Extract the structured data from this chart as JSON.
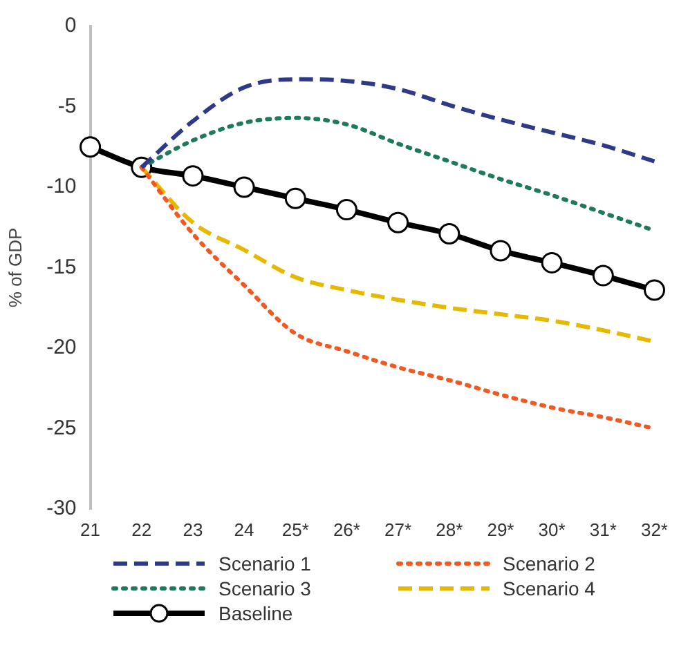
{
  "chart_data": {
    "type": "line",
    "ylabel": "% of GDP",
    "categories": [
      "21",
      "22",
      "23",
      "24",
      "25*",
      "26*",
      "27*",
      "28*",
      "29*",
      "30*",
      "31*",
      "32*"
    ],
    "series": [
      {
        "name": "Scenario 1",
        "color": "#2e3a87",
        "line_style": "dashed",
        "marker": "none",
        "values": [
          null,
          -8.77,
          -5.9,
          -3.8,
          -3.3,
          -3.4,
          -3.9,
          -4.9,
          -5.8,
          -6.6,
          -7.4,
          -8.4
        ]
      },
      {
        "name": "Scenario 2",
        "color": "#f05a22",
        "line_style": "dotted",
        "marker": "none",
        "values": [
          null,
          -8.77,
          -12.9,
          -16.1,
          -19.1,
          -20.2,
          -21.2,
          -22.0,
          -22.9,
          -23.7,
          -24.3,
          -25.0
        ]
      },
      {
        "name": "Scenario 3",
        "color": "#1f7a5a",
        "line_style": "dotted",
        "marker": "none",
        "values": [
          null,
          -8.77,
          -7.1,
          -6.0,
          -5.7,
          -6.1,
          -7.3,
          -8.4,
          -9.5,
          -10.5,
          -11.6,
          -12.7
        ]
      },
      {
        "name": "Scenario 4",
        "color": "#e6b800",
        "line_style": "dashed",
        "marker": "none",
        "values": [
          null,
          -8.77,
          -12.2,
          -13.9,
          -15.6,
          -16.4,
          -17.0,
          -17.5,
          -17.9,
          -18.3,
          -18.9,
          -19.6
        ]
      },
      {
        "name": "Baseline",
        "color": "#000000",
        "line_style": "solid",
        "marker": "circle",
        "values": [
          -7.5,
          -8.77,
          -9.3,
          -10.0,
          -10.7,
          -11.4,
          -12.2,
          -12.9,
          -13.95,
          -14.7,
          -15.5,
          -16.4
        ]
      }
    ],
    "ylim": [
      -30,
      0
    ],
    "yticks": [
      -30,
      -25,
      -20,
      -15,
      -10,
      -5,
      0
    ],
    "grid": false,
    "legend": "bottom"
  }
}
